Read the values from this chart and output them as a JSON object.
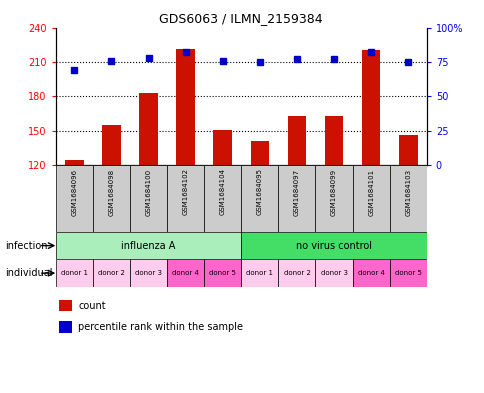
{
  "title": "GDS6063 / ILMN_2159384",
  "samples": [
    "GSM1684096",
    "GSM1684098",
    "GSM1684100",
    "GSM1684102",
    "GSM1684104",
    "GSM1684095",
    "GSM1684097",
    "GSM1684099",
    "GSM1684101",
    "GSM1684103"
  ],
  "counts": [
    124,
    155,
    183,
    221,
    151,
    141,
    163,
    163,
    220,
    146
  ],
  "percentiles": [
    69,
    76,
    78,
    82,
    76,
    75,
    77,
    77,
    82,
    75
  ],
  "ylim_left": [
    120,
    240
  ],
  "ylim_right": [
    0,
    100
  ],
  "yticks_left": [
    120,
    150,
    180,
    210,
    240
  ],
  "yticks_right": [
    0,
    25,
    50,
    75,
    100
  ],
  "yticklabels_right": [
    "0",
    "25",
    "50",
    "75",
    "100%"
  ],
  "bar_color": "#CC1100",
  "dot_color": "#0000CC",
  "bar_bottom": 120,
  "sample_bg_color": "#cccccc",
  "inf_color_1": "#aaeebb",
  "inf_color_2": "#44dd66",
  "donor_colors": [
    "#ffccee",
    "#ffccee",
    "#ffccee",
    "#ff66cc",
    "#ff66cc",
    "#ffccee",
    "#ffccee",
    "#ffccee",
    "#ff66cc",
    "#ff66cc"
  ],
  "donors": [
    "donor 1",
    "donor 2",
    "donor 3",
    "donor 4",
    "donor 5",
    "donor 1",
    "donor 2",
    "donor 3",
    "donor 4",
    "donor 5"
  ]
}
